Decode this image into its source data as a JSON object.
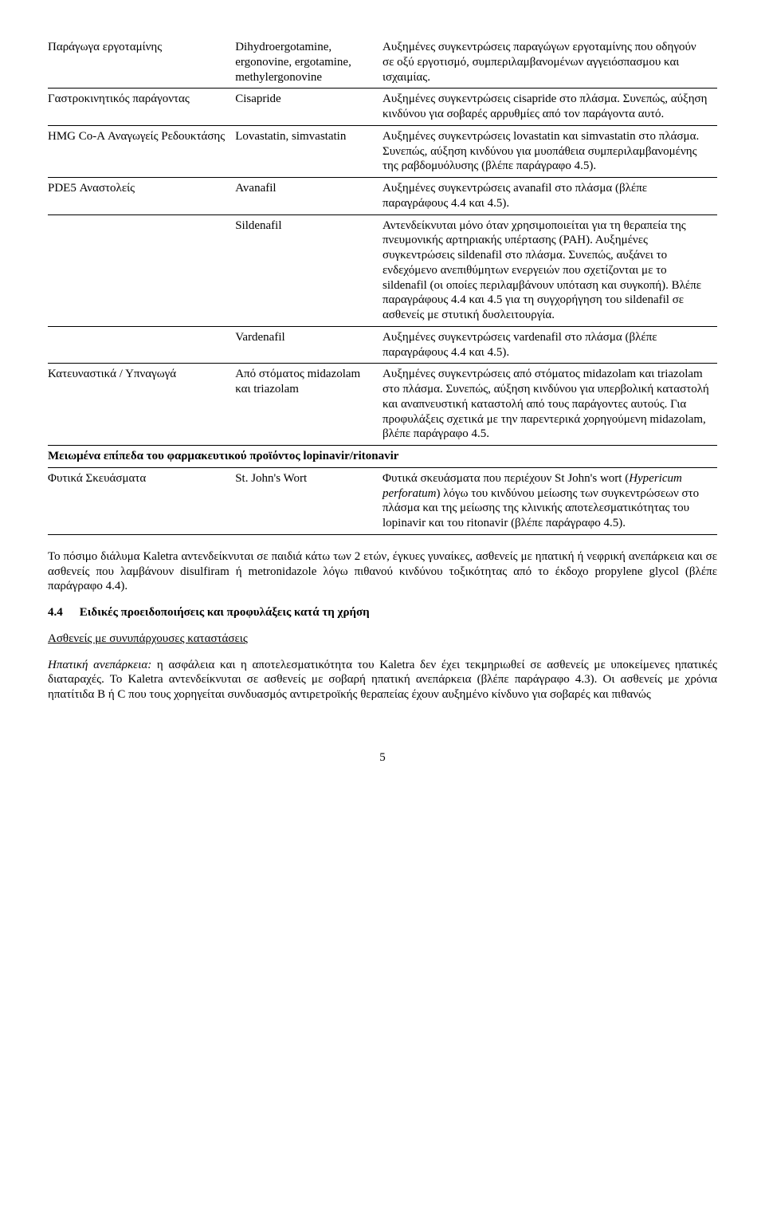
{
  "table": {
    "r1": {
      "c1": "Παράγωγα εργοταμίνης",
      "c2": "Dihydroergotamine, ergonovine, ergotamine, methylergonovine",
      "c3": "Αυξημένες συγκεντρώσεις παραγώγων εργοταμίνης που οδηγούν σε οξύ εργοτισμό, συμπεριλαμβανομένων αγγειόσπασμου και ισχαιμίας."
    },
    "r2": {
      "c1": "Γαστροκινητικός παράγοντας",
      "c2": "Cisapride",
      "c3": "Αυξημένες συγκεντρώσεις cisapride στο πλάσμα. Συνεπώς, αύξηση κινδύνου για σοβαρές αρρυθμίες από τον παράγοντα αυτό."
    },
    "r3": {
      "c1": "HMG Co-A Αναγωγείς Ρεδουκτάσης",
      "c2": "Lovastatin, simvastatin",
      "c3": "Αυξημένες συγκεντρώσεις lovastatin και simvastatin στο πλάσμα. Συνεπώς, αύξηση κινδύνου για μυοπάθεια συμπεριλαμβανομένης της ραβδομυόλυσης (βλέπε παράγραφο 4.5)."
    },
    "r4": {
      "c1": "PDE5 Αναστολείς",
      "c2": "Avanafil",
      "c3": "Αυξημένες συγκεντρώσεις avanafil στο πλάσμα (βλέπε παραγράφους 4.4 και 4.5)."
    },
    "r5": {
      "c2": "Sildenafil",
      "c3": "Αντενδείκνυται μόνο όταν χρησιμοποιείται για τη θεραπεία της πνευμονικής αρτηριακής υπέρτασης (PAH). Αυξημένες συγκεντρώσεις sildenafil στο πλάσμα. Συνεπώς, αυξάνει το ενδεχόμενο ανεπιθύμητων ενεργειών που σχετίζονται με το sildenafil (οι οποίες περιλαμβάνουν υπόταση και συγκοπή). Βλέπε παραγράφους 4.4 και 4.5 για τη συγχορήγηση του sildenafil σε ασθενείς με στυτική δυσλειτουργία."
    },
    "r6": {
      "c2": "Vardenafil",
      "c3": "Αυξημένες συγκεντρώσεις vardenafil στο πλάσμα (βλέπε παραγράφους 4.4 και 4.5)."
    },
    "r7": {
      "c1": "Κατευναστικά / Υπναγωγά",
      "c2": "Από στόματος midazolam και triazolam",
      "c3": "Αυξημένες συγκεντρώσεις από στόματος midazolam και triazolam στο πλάσμα. Συνεπώς, αύξηση κινδύνου για υπερβολική καταστολή και αναπνευστική καταστολή από τους παράγοντες αυτούς. Για προφυλάξεις σχετικά με την παρεντερικά χορηγούμενη midazolam, βλέπε παράγραφο 4.5."
    },
    "section": "Μειωμένα επίπεδα του φαρμακευτικού προϊόντος lopinavir/ritonavir",
    "r8": {
      "c1": "Φυτικά Σκευάσματα",
      "c2": "St. John's Wort",
      "c3_a": "Φυτικά σκευάσματα που περιέχουν St John's wort (",
      "c3_i": "Hypericum perforatum",
      "c3_b": ") λόγω του κινδύνου μείωσης των συγκεντρώσεων στο πλάσμα και της μείωσης της κλινικής αποτελεσματικότητας του lopinavir και του ritonavir (βλέπε παράγραφο 4.5)."
    }
  },
  "p1": "Το πόσιμο διάλυμα Kaletra αντενδείκνυται σε παιδιά κάτω των 2 ετών, έγκυες γυναίκες, ασθενείς με ηπατική ή νεφρική ανεπάρκεια και σε ασθενείς που λαμβάνουν disulfiram ή metronidazole λόγω πιθανού κινδύνου τοξικότητας από το έκδοχο propylene glycol (βλέπε παράγραφο 4.4).",
  "h4": {
    "num": "4.4",
    "title": "Ειδικές προειδοποιήσεις και προφυλάξεις κατά τη χρήση"
  },
  "sub1": "Ασθενείς με συνυπάρχουσες καταστάσεις",
  "p2_i": "Ηπατική ανεπάρκεια:",
  "p2": " η ασφάλεια και η αποτελεσματικότητα του Kaletra δεν έχει τεκμηριωθεί σε ασθενείς με υποκείμενες ηπατικές διαταραχές. Το Kaletra αντενδείκνυται σε ασθενείς με σοβαρή ηπατική ανεπάρκεια (βλέπε παράγραφο 4.3). Οι ασθενείς με χρόνια ηπατίτιδα B ή C που τους χορηγείται συνδυασμός αντιρετροϊκής θεραπείας έχουν αυξημένο κίνδυνο για σοβαρές και πιθανώς",
  "pagenum": "5"
}
